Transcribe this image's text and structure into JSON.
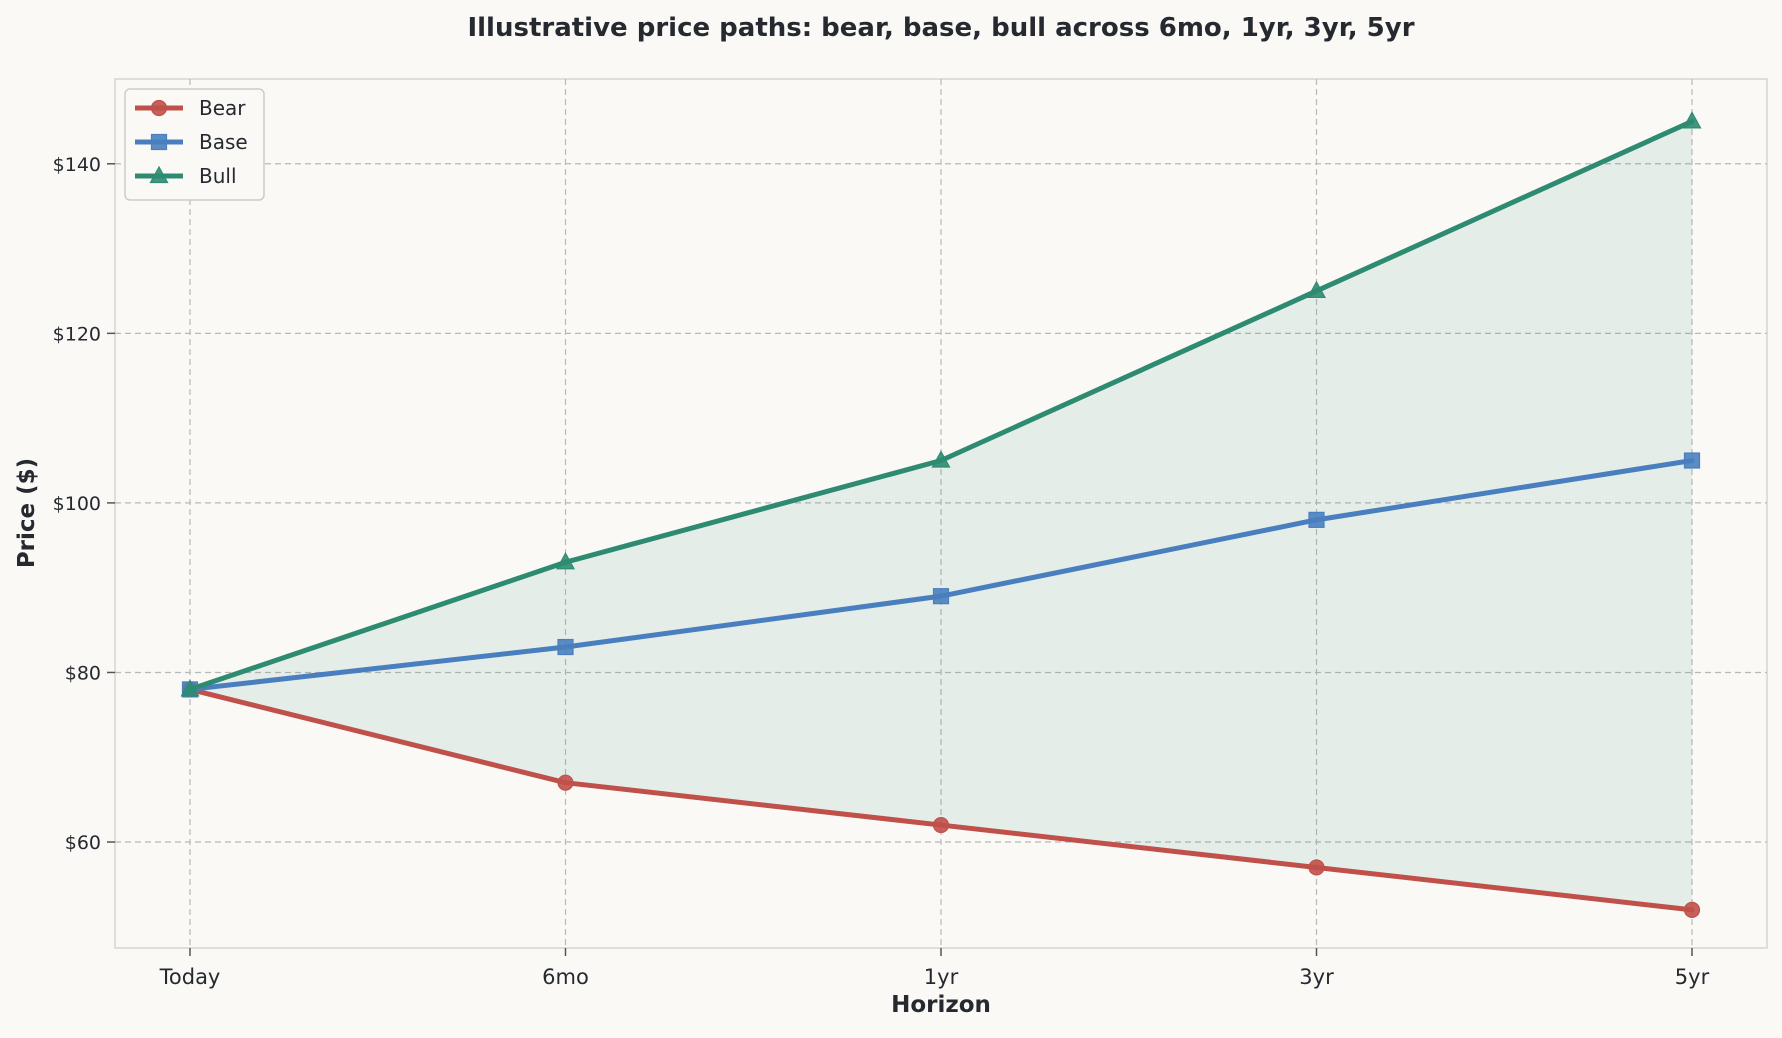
{
  "chart_data": {
    "type": "line",
    "title": "Illustrative price paths: bear, base, bull across 6mo, 1yr, 3yr, 5yr",
    "xlabel": "Horizon",
    "ylabel": "Price ($)",
    "categories": [
      "Today",
      "6mo",
      "1yr",
      "3yr",
      "5yr"
    ],
    "ylim": [
      47.5,
      150
    ],
    "yticks": [
      60,
      80,
      100,
      120,
      140
    ],
    "ytick_labels": [
      "$60",
      "$80",
      "$100",
      "$120",
      "$140"
    ],
    "grid": true,
    "legend_position": "top-left",
    "band": {
      "between": [
        "Bear",
        "Bull"
      ],
      "color": "#2e8b72"
    },
    "series": [
      {
        "name": "Bear",
        "values": [
          78,
          67,
          62,
          57,
          52
        ],
        "color": "#c0504a",
        "marker": "circle"
      },
      {
        "name": "Base",
        "values": [
          78,
          83,
          89,
          98,
          105
        ],
        "color": "#4a7fbf",
        "marker": "square"
      },
      {
        "name": "Bull",
        "values": [
          78,
          93,
          105,
          125,
          145
        ],
        "color": "#2e8b72",
        "marker": "triangle"
      }
    ]
  }
}
